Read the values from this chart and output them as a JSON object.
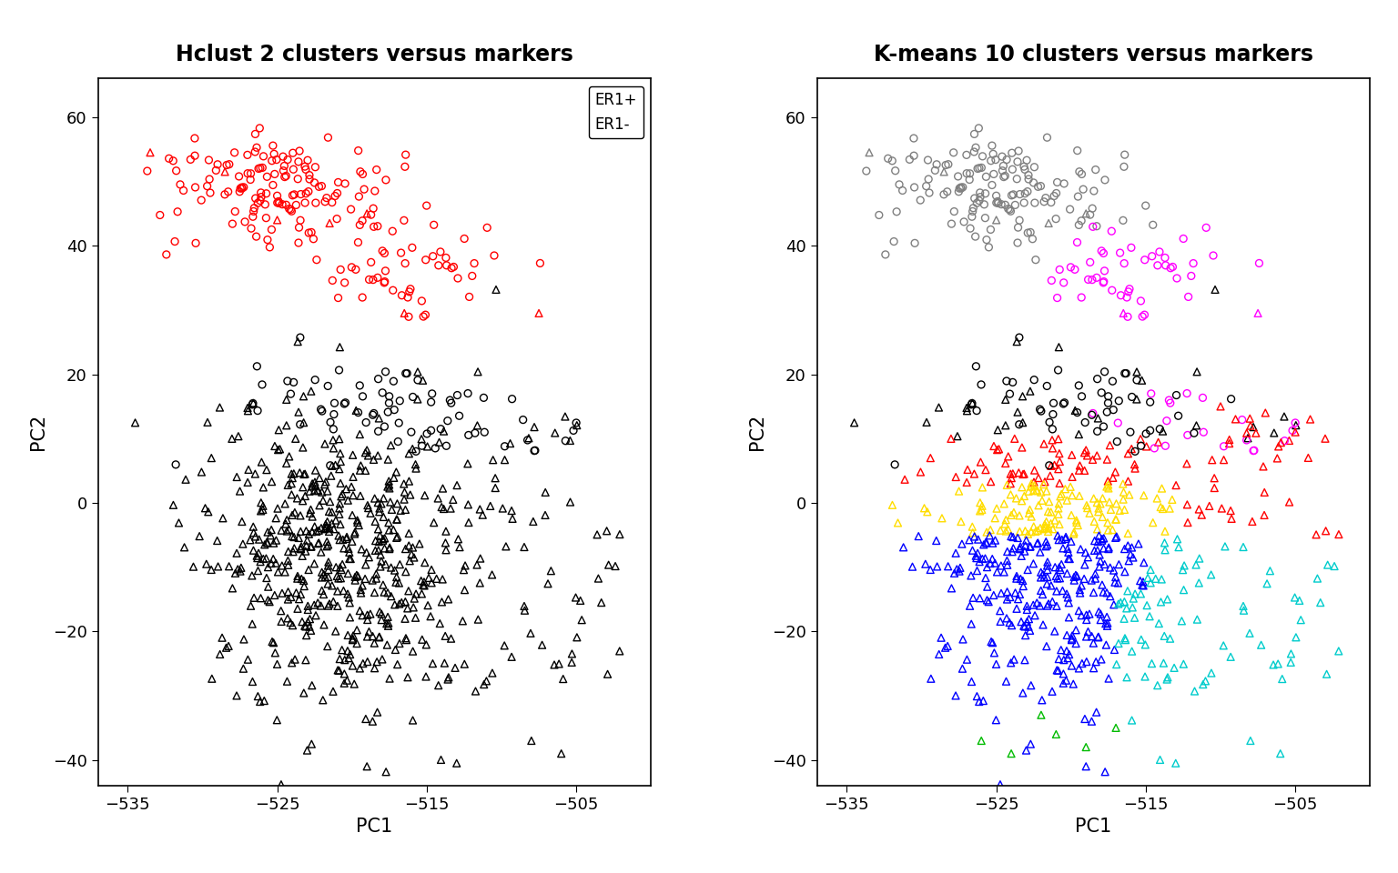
{
  "title_left": "Hclust 2 clusters versus markers",
  "title_right": "K-means 10 clusters versus markers",
  "xlabel": "PC1",
  "ylabel": "PC2",
  "xlim": [
    -537,
    -500
  ],
  "ylim": [
    -44,
    66
  ],
  "xticks": [
    -535,
    -525,
    -515,
    -505
  ],
  "yticks": [
    -40,
    -20,
    0,
    20,
    40,
    60
  ],
  "background_color": "#ffffff",
  "title_fontsize": 17,
  "axis_fontsize": 15,
  "tick_fontsize": 13,
  "seed": 7,
  "kmeans_colors": [
    "#808080",
    "#ff00ff",
    "#000000",
    "#ff0000",
    "#ffdd00",
    "#0000ff",
    "#00cccc",
    "#00bb00",
    "#ff8800",
    "#8800ff"
  ]
}
